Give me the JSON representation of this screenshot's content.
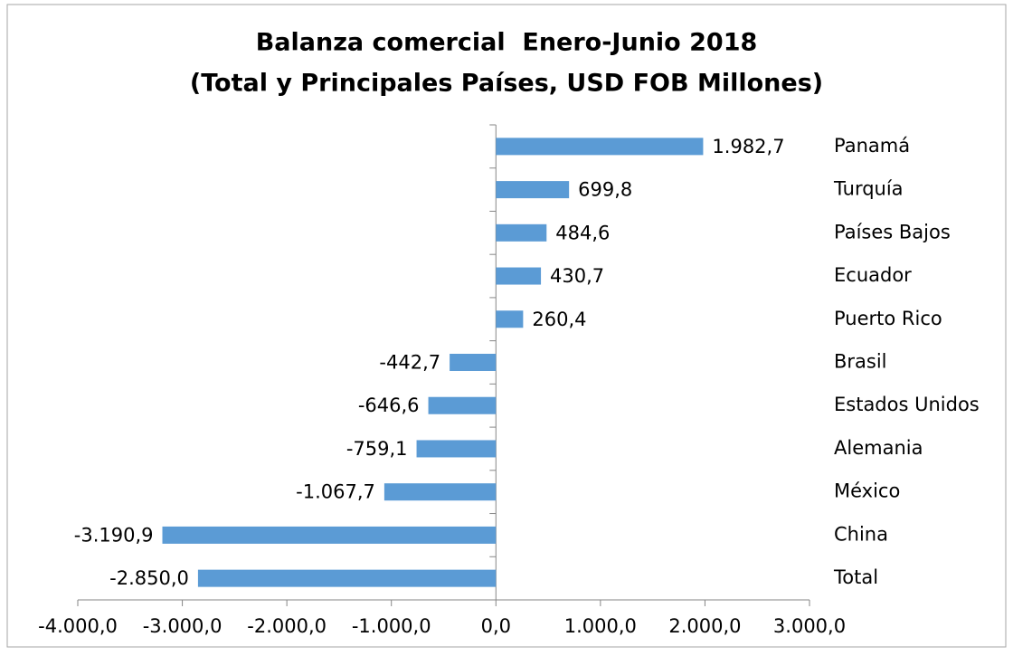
{
  "chart_data": {
    "type": "barh",
    "title": [
      "Balanza comercial  Enero-Junio 2018",
      "(Total y Principales Países, USD FOB Millones)"
    ],
    "categories": [
      "Panamá",
      "Turquía",
      "Países Bajos",
      "Ecuador",
      "Puerto Rico",
      "Brasil",
      "Estados Unidos",
      "Alemania",
      "México",
      "China",
      "Total"
    ],
    "values": [
      1982.7,
      699.8,
      484.6,
      430.7,
      260.4,
      -442.7,
      -646.6,
      -759.1,
      -1067.7,
      -3190.9,
      -2850.0
    ],
    "value_labels": [
      "1.982,7",
      "699,8",
      "484,6",
      "430,7",
      "260,4",
      "-442,7",
      "-646,6",
      "-759,1",
      "-1.067,7",
      "-3.190,9",
      "-2.850,0"
    ],
    "color": "#5b9bd5",
    "xlim": [
      -4000,
      3000
    ],
    "xticks": [
      {
        "value": -4000,
        "label": "-4.000,0"
      },
      {
        "value": -3000,
        "label": "-3.000,0"
      },
      {
        "value": -2000,
        "label": "-2.000,0"
      },
      {
        "value": -1000,
        "label": "-1.000,0"
      },
      {
        "value": 0,
        "label": "0,0"
      },
      {
        "value": 1000,
        "label": "1.000,0"
      },
      {
        "value": 2000,
        "label": "2.000,0"
      },
      {
        "value": 3000,
        "label": "3.000,0"
      }
    ],
    "grid": false
  }
}
